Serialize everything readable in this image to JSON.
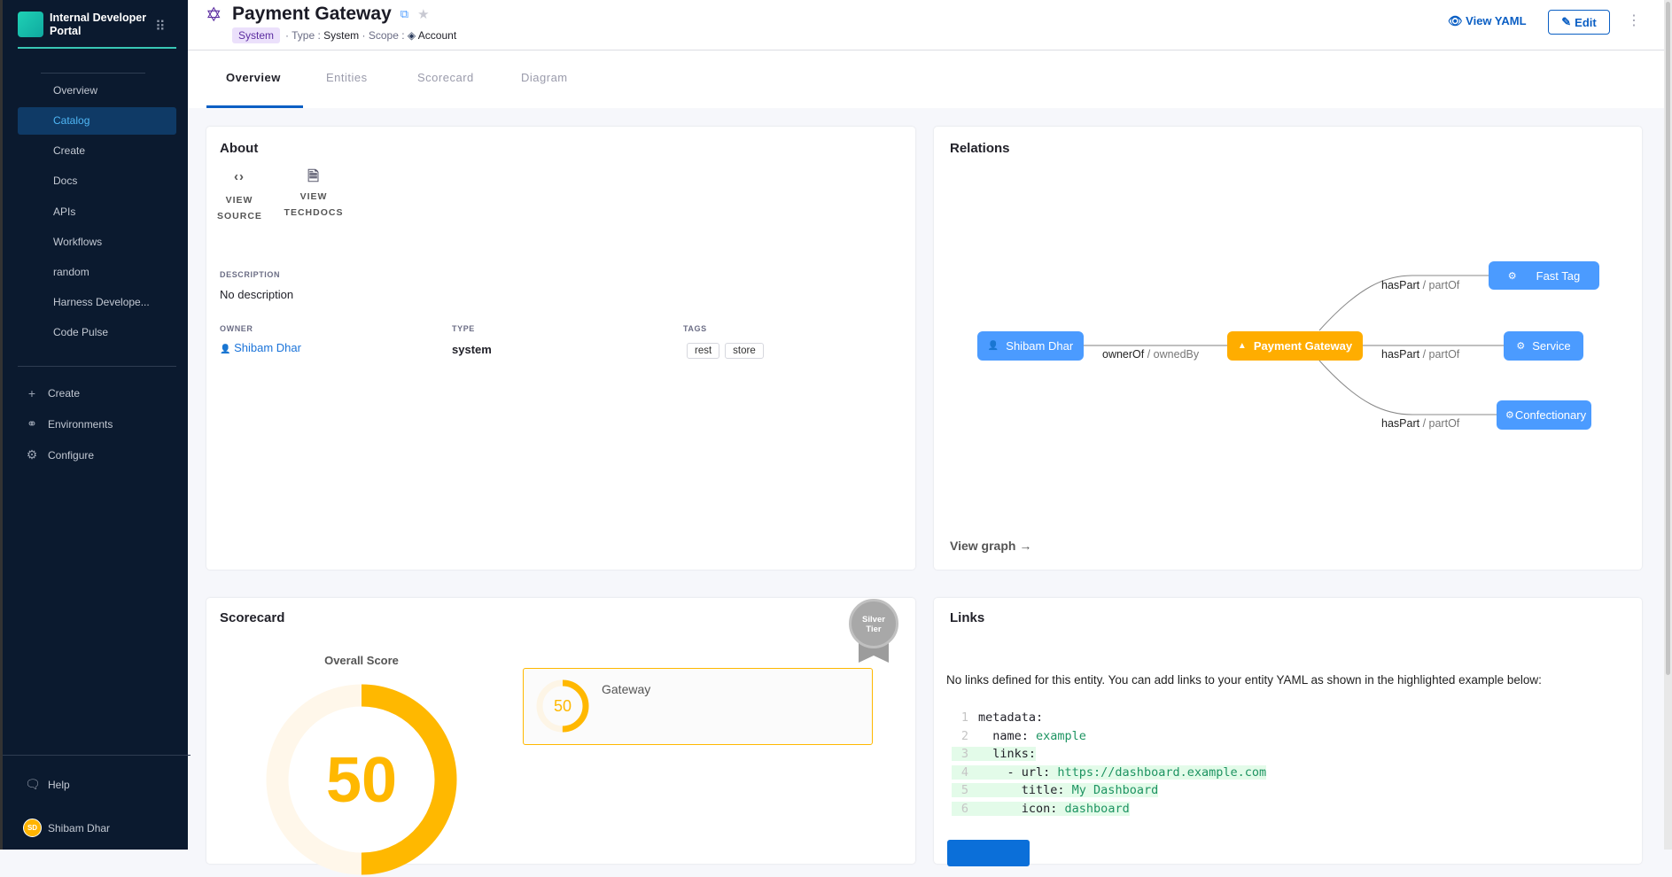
{
  "sidebar": {
    "brand": "Internal Developer Portal",
    "items": [
      {
        "label": "Overview"
      },
      {
        "label": "Catalog",
        "active": true
      },
      {
        "label": "Create"
      },
      {
        "label": "Docs"
      },
      {
        "label": "APIs"
      },
      {
        "label": "Workflows"
      },
      {
        "label": "random"
      },
      {
        "label": "Harness Develope..."
      },
      {
        "label": "Code Pulse"
      }
    ],
    "secondary": [
      {
        "label": "Create",
        "icon": "plus-icon"
      },
      {
        "label": "Environments",
        "icon": "environments-icon"
      },
      {
        "label": "Configure",
        "icon": "gear-icon"
      }
    ],
    "help": "Help",
    "user": {
      "initials": "SD",
      "name": "Shibam Dhar"
    }
  },
  "header": {
    "title": "Payment Gateway",
    "kind_badge": "System",
    "type_label": "Type :",
    "type_value": "System",
    "scope_label": "Scope :",
    "scope_value": "Account",
    "view_yaml": "View YAML",
    "edit": "Edit"
  },
  "tabs": [
    {
      "label": "Overview",
      "active": true
    },
    {
      "label": "Entities"
    },
    {
      "label": "Scorecard"
    },
    {
      "label": "Diagram"
    }
  ],
  "about": {
    "title": "About",
    "view_source": [
      "VIEW",
      "SOURCE"
    ],
    "view_techdocs": [
      "VIEW",
      "TECHDOCS"
    ],
    "description_label": "DESCRIPTION",
    "description": "No description",
    "owner_label": "OWNER",
    "owner": "Shibam Dhar",
    "type_label": "TYPE",
    "type": "system",
    "tags_label": "TAGS",
    "tags": [
      "rest",
      "store"
    ]
  },
  "relations": {
    "title": "Relations",
    "nodes": {
      "owner": "Shibam Dhar",
      "center": "Payment Gateway",
      "a": "Fast Tag",
      "b": "Service",
      "c": "Confectionary"
    },
    "edges": {
      "owner_primary": "ownerOf",
      "owner_secondary": "/ ownedBy",
      "part_primary": "hasPart",
      "part_secondary": "/ partOf"
    },
    "view_graph": "View graph"
  },
  "scorecard": {
    "title": "Scorecard",
    "overall_label": "Overall Score",
    "overall": 50,
    "badge": [
      "Silver",
      "Tier"
    ],
    "checks": [
      {
        "name": "Gateway",
        "score": 50
      }
    ],
    "color": "#ffb800"
  },
  "links": {
    "title": "Links",
    "message": "No links defined for this entity. You can add links to your entity YAML as shown in the highlighted example below:",
    "code": [
      {
        "n": "1",
        "k": "metadata:",
        "v": ""
      },
      {
        "n": "2",
        "k": "  name: ",
        "v": "example"
      },
      {
        "n": "3",
        "k": "  links:",
        "v": ""
      },
      {
        "n": "4",
        "k": "    - url: ",
        "v": "https://dashboard.example.com"
      },
      {
        "n": "5",
        "k": "      title: ",
        "v": "My Dashboard"
      },
      {
        "n": "6",
        "k": "      icon: ",
        "v": "dashboard"
      }
    ]
  }
}
